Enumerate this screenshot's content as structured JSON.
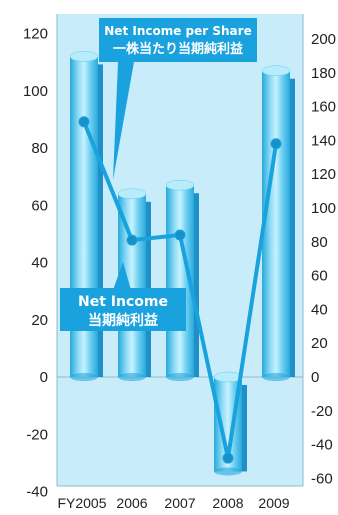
{
  "chart_data": {
    "type": "bar",
    "categories": [
      "FY2005",
      "2006",
      "2007",
      "2008",
      "2009"
    ],
    "series": [
      {
        "name": "Net Income",
        "type": "bar",
        "axis": "left",
        "values": [
          112,
          64,
          67,
          -33,
          107
        ]
      },
      {
        "name": "Net Income per Share",
        "type": "line",
        "axis": "right",
        "values": [
          151,
          81,
          84,
          -48,
          138
        ]
      }
    ],
    "y_left": {
      "range": [
        -40,
        120
      ],
      "ticks": [
        "-40",
        "-20",
        "0",
        "20",
        "40",
        "60",
        "80",
        "100",
        "120"
      ]
    },
    "y_right": {
      "range": [
        -70,
        220
      ],
      "ticks": [
        "-60",
        "-40",
        "-20",
        "0",
        "20",
        "40",
        "60",
        "80",
        "100",
        "120",
        "140",
        "160",
        "180",
        "200"
      ]
    },
    "callouts": {
      "line": {
        "text_en": "Net Income per Share",
        "text_ja": "一株当たり当期純利益"
      },
      "bar": {
        "text_en": "Net Income",
        "text_ja": "当期純利益"
      }
    },
    "colors": {
      "plot_background": "#c9ecfb",
      "bar_light": "#b8ecfb",
      "bar_mid": "#5fcbee",
      "bar_dark": "#27a9dc",
      "bar_shadow": "#1f90c6",
      "line": "#1aa2de",
      "callout": "#1aa2de"
    }
  }
}
